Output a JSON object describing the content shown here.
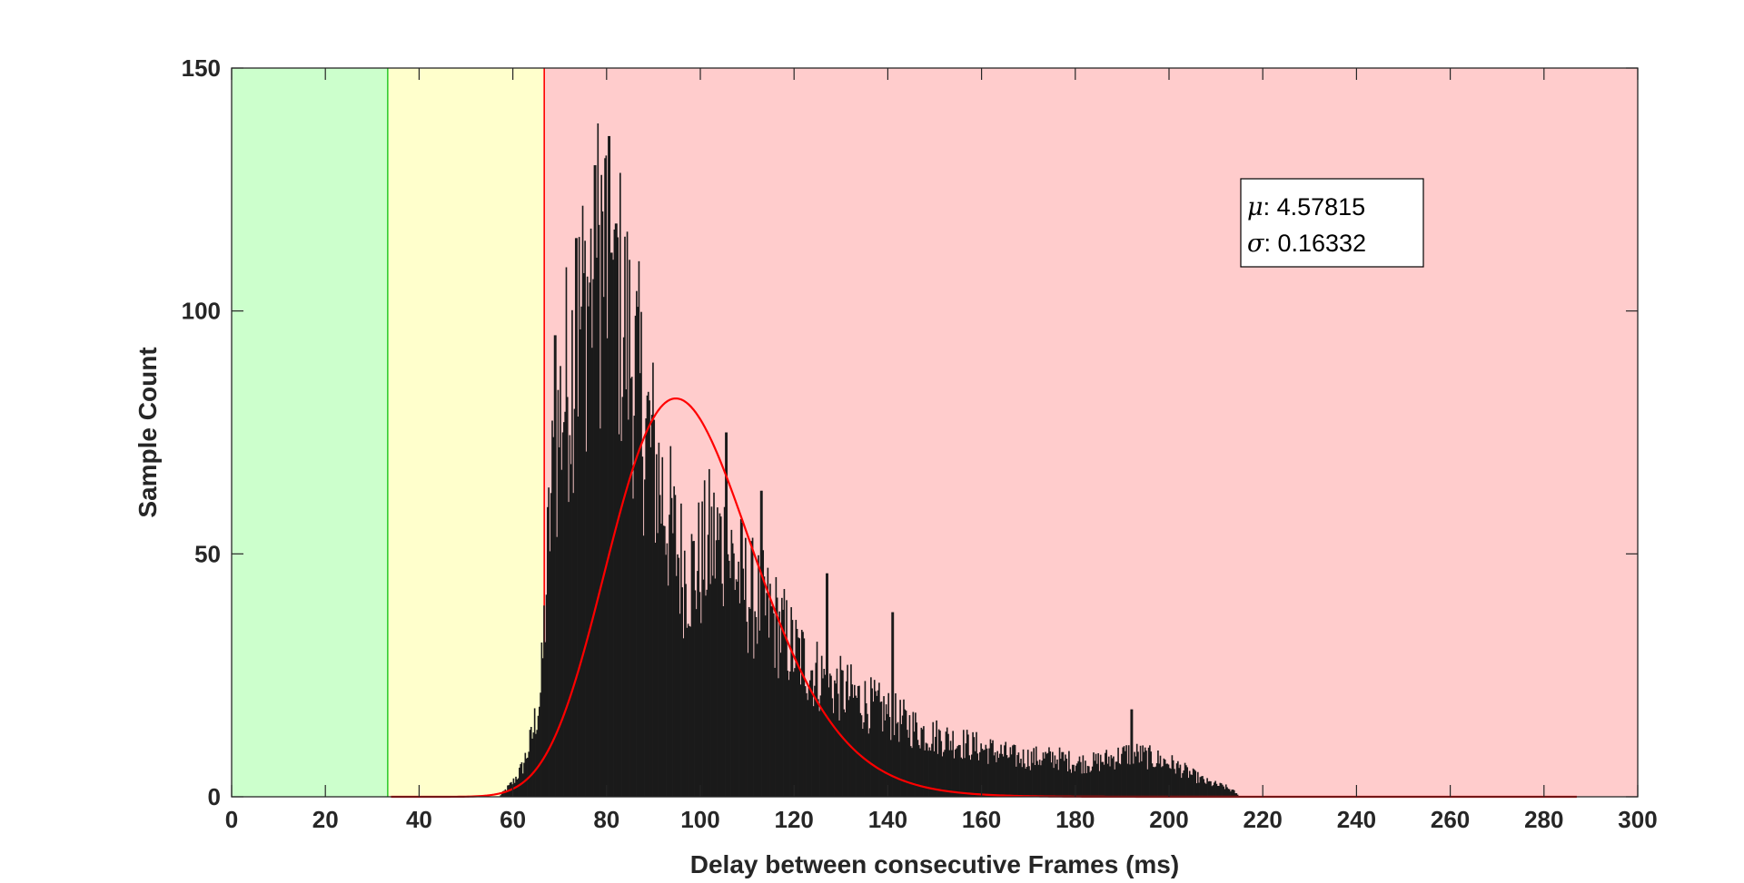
{
  "chart_data": {
    "type": "bar",
    "xlabel": "Delay between consecutive Frames (ms)",
    "ylabel": "Sample Count",
    "xlim": [
      0,
      300
    ],
    "ylim": [
      0,
      150
    ],
    "xticks": [
      0,
      20,
      40,
      60,
      80,
      100,
      120,
      140,
      160,
      180,
      200,
      220,
      240,
      260,
      280,
      300
    ],
    "yticks": [
      0,
      50,
      100,
      150
    ],
    "grid": false,
    "zones": [
      {
        "from": 0,
        "to": 33.3,
        "color": "#ccffcc",
        "edge_color": "#33cc33"
      },
      {
        "from": 33.3,
        "to": 66.7,
        "color": "#ffffcc",
        "edge_color": "#ff0000"
      },
      {
        "from": 66.7,
        "to": 300,
        "color": "#ffcccc"
      }
    ],
    "histogram": {
      "color": "#1a1a1a",
      "bin_width": 0.25,
      "bin_count_points": [
        [
          57,
          0
        ],
        [
          58,
          1
        ],
        [
          60,
          3
        ],
        [
          62,
          6
        ],
        [
          64,
          12
        ],
        [
          66,
          22
        ],
        [
          68,
          60
        ],
        [
          70,
          78
        ],
        [
          72,
          88
        ],
        [
          74,
          96
        ],
        [
          76,
          104
        ],
        [
          78,
          110
        ],
        [
          80,
          110
        ],
        [
          82,
          104
        ],
        [
          84,
          96
        ],
        [
          86,
          88
        ],
        [
          88,
          78
        ],
        [
          90,
          70
        ],
        [
          92,
          62
        ],
        [
          94,
          54
        ],
        [
          96,
          48
        ],
        [
          98,
          46
        ],
        [
          100,
          48
        ],
        [
          102,
          52
        ],
        [
          104,
          52
        ],
        [
          106,
          50
        ],
        [
          108,
          46
        ],
        [
          110,
          42
        ],
        [
          112,
          40
        ],
        [
          114,
          38
        ],
        [
          116,
          36
        ],
        [
          118,
          33
        ],
        [
          120,
          30
        ],
        [
          124,
          26
        ],
        [
          128,
          23
        ],
        [
          132,
          21
        ],
        [
          136,
          19
        ],
        [
          140,
          17
        ],
        [
          144,
          15
        ],
        [
          148,
          13
        ],
        [
          152,
          12
        ],
        [
          156,
          11
        ],
        [
          160,
          10
        ],
        [
          164,
          9
        ],
        [
          168,
          8
        ],
        [
          172,
          8
        ],
        [
          176,
          8
        ],
        [
          180,
          7
        ],
        [
          184,
          7
        ],
        [
          188,
          8
        ],
        [
          192,
          9
        ],
        [
          196,
          8
        ],
        [
          200,
          7
        ],
        [
          204,
          5
        ],
        [
          208,
          3
        ],
        [
          212,
          2
        ],
        [
          214,
          1
        ],
        [
          215,
          0
        ]
      ],
      "peaks": [
        [
          77.5,
          130
        ],
        [
          80.5,
          136
        ],
        [
          78.9,
          128
        ],
        [
          79.8,
          132
        ],
        [
          82,
          118
        ],
        [
          81,
          112
        ],
        [
          73.5,
          115
        ],
        [
          69,
          95
        ],
        [
          105.5,
          75
        ],
        [
          113,
          63
        ],
        [
          127,
          46
        ],
        [
          141,
          38
        ],
        [
          192,
          18
        ]
      ]
    },
    "series": [
      {
        "type": "line",
        "color": "#ff0000",
        "fit": "lognormal",
        "x_range": [
          34,
          287
        ],
        "peak": 82
      }
    ],
    "annotation": {
      "mu_symbol": "μ",
      "mu_text": ": 4.57815",
      "sigma_symbol": "σ",
      "sigma_text": ": 0.16332"
    }
  }
}
